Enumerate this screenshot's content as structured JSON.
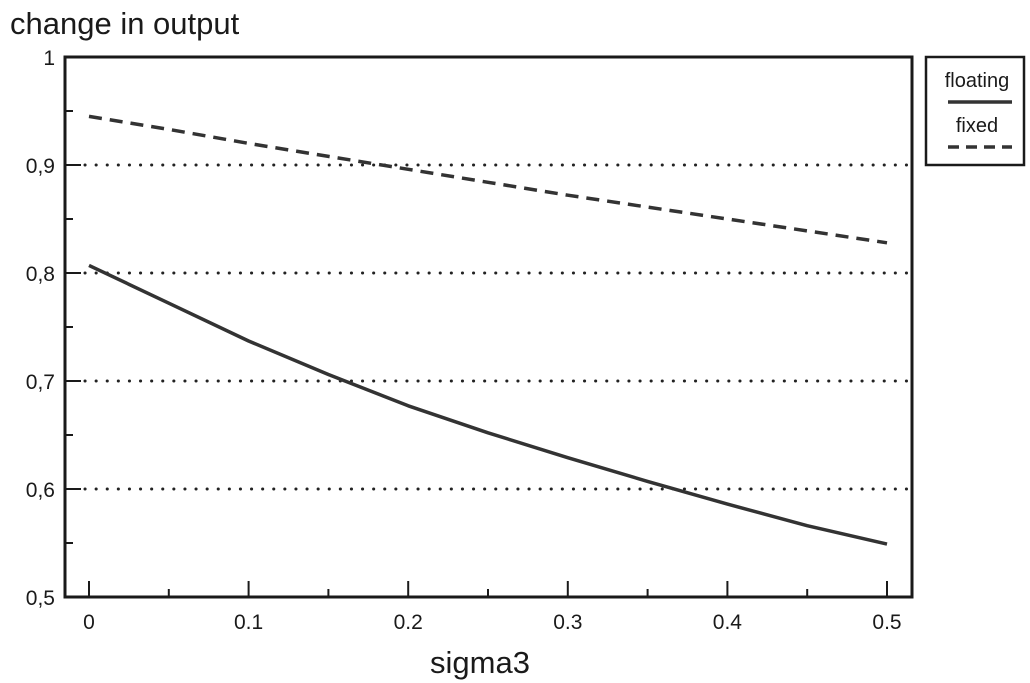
{
  "chart_data": {
    "type": "line",
    "title": "",
    "ylabel": "change in output",
    "xlabel": "sigma3",
    "xlim": [
      0,
      0.5
    ],
    "ylim": [
      0.5,
      1
    ],
    "x_ticks": [
      "0",
      "0.1",
      "0.2",
      "0.3",
      "0.4",
      "0.5"
    ],
    "y_ticks": [
      "0,5",
      "0,6",
      "0,7",
      "0,8",
      "0,9",
      "1"
    ],
    "grid": "horizontal dotted",
    "legend_position": "top-right outside",
    "series": [
      {
        "name": "floating",
        "style": "solid",
        "color": "#333333",
        "x": [
          0,
          0.05,
          0.1,
          0.15,
          0.2,
          0.25,
          0.3,
          0.35,
          0.4,
          0.45,
          0.5
        ],
        "y": [
          0.807,
          0.772,
          0.737,
          0.706,
          0.677,
          0.652,
          0.629,
          0.607,
          0.586,
          0.566,
          0.549
        ]
      },
      {
        "name": "fixed",
        "style": "dashed",
        "color": "#333333",
        "x": [
          0,
          0.05,
          0.1,
          0.15,
          0.2,
          0.25,
          0.3,
          0.35,
          0.4,
          0.45,
          0.5
        ],
        "y": [
          0.945,
          0.933,
          0.92,
          0.908,
          0.896,
          0.884,
          0.872,
          0.861,
          0.85,
          0.839,
          0.828
        ]
      }
    ]
  }
}
